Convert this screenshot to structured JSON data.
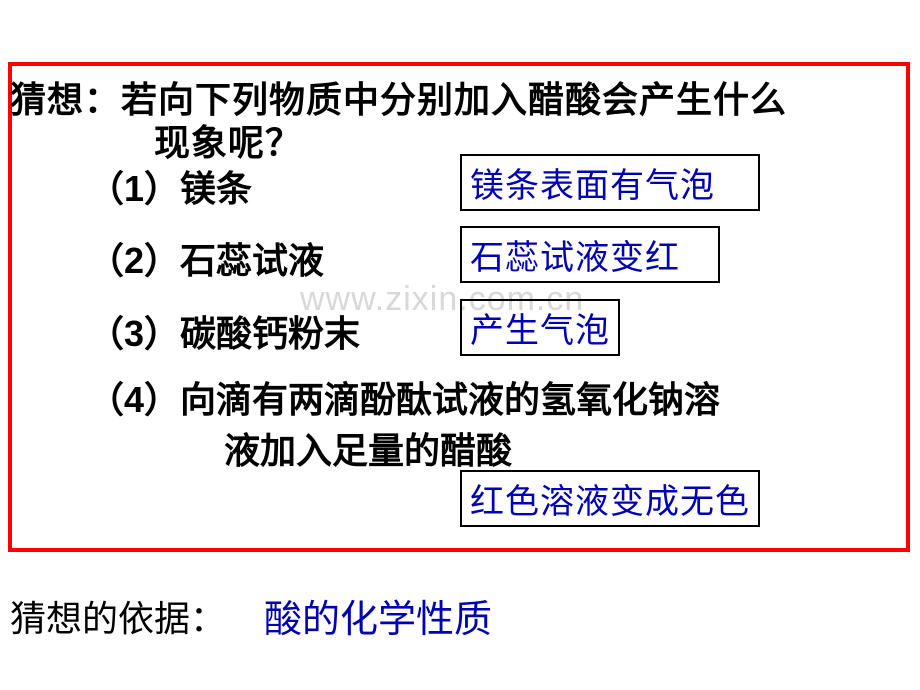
{
  "question": {
    "line1": "猜想：若向下列物质中分别加入醋酸会产生什么",
    "line2": "现象呢？"
  },
  "items": {
    "i1": "（1）镁条",
    "i2": "（2）石蕊试液",
    "i3": "（3）碳酸钙粉末",
    "i4a": "（4）向滴有两滴酚酞试液的氢氧化钠溶",
    "i4b": "液加入足量的醋酸"
  },
  "answers": {
    "a1": "镁条表面有气泡",
    "a2": "石蕊试液变红",
    "a3": "产生气泡",
    "a4": "红色溶液变成无色"
  },
  "watermark": "www.zixin.com.cn",
  "basis_label": "猜想的依据：",
  "basis_answer": "酸的化学性质",
  "colors": {
    "border": "#ff0000",
    "text": "#000000",
    "answer": "#0000b4",
    "watermark": "#d8d8d8"
  }
}
